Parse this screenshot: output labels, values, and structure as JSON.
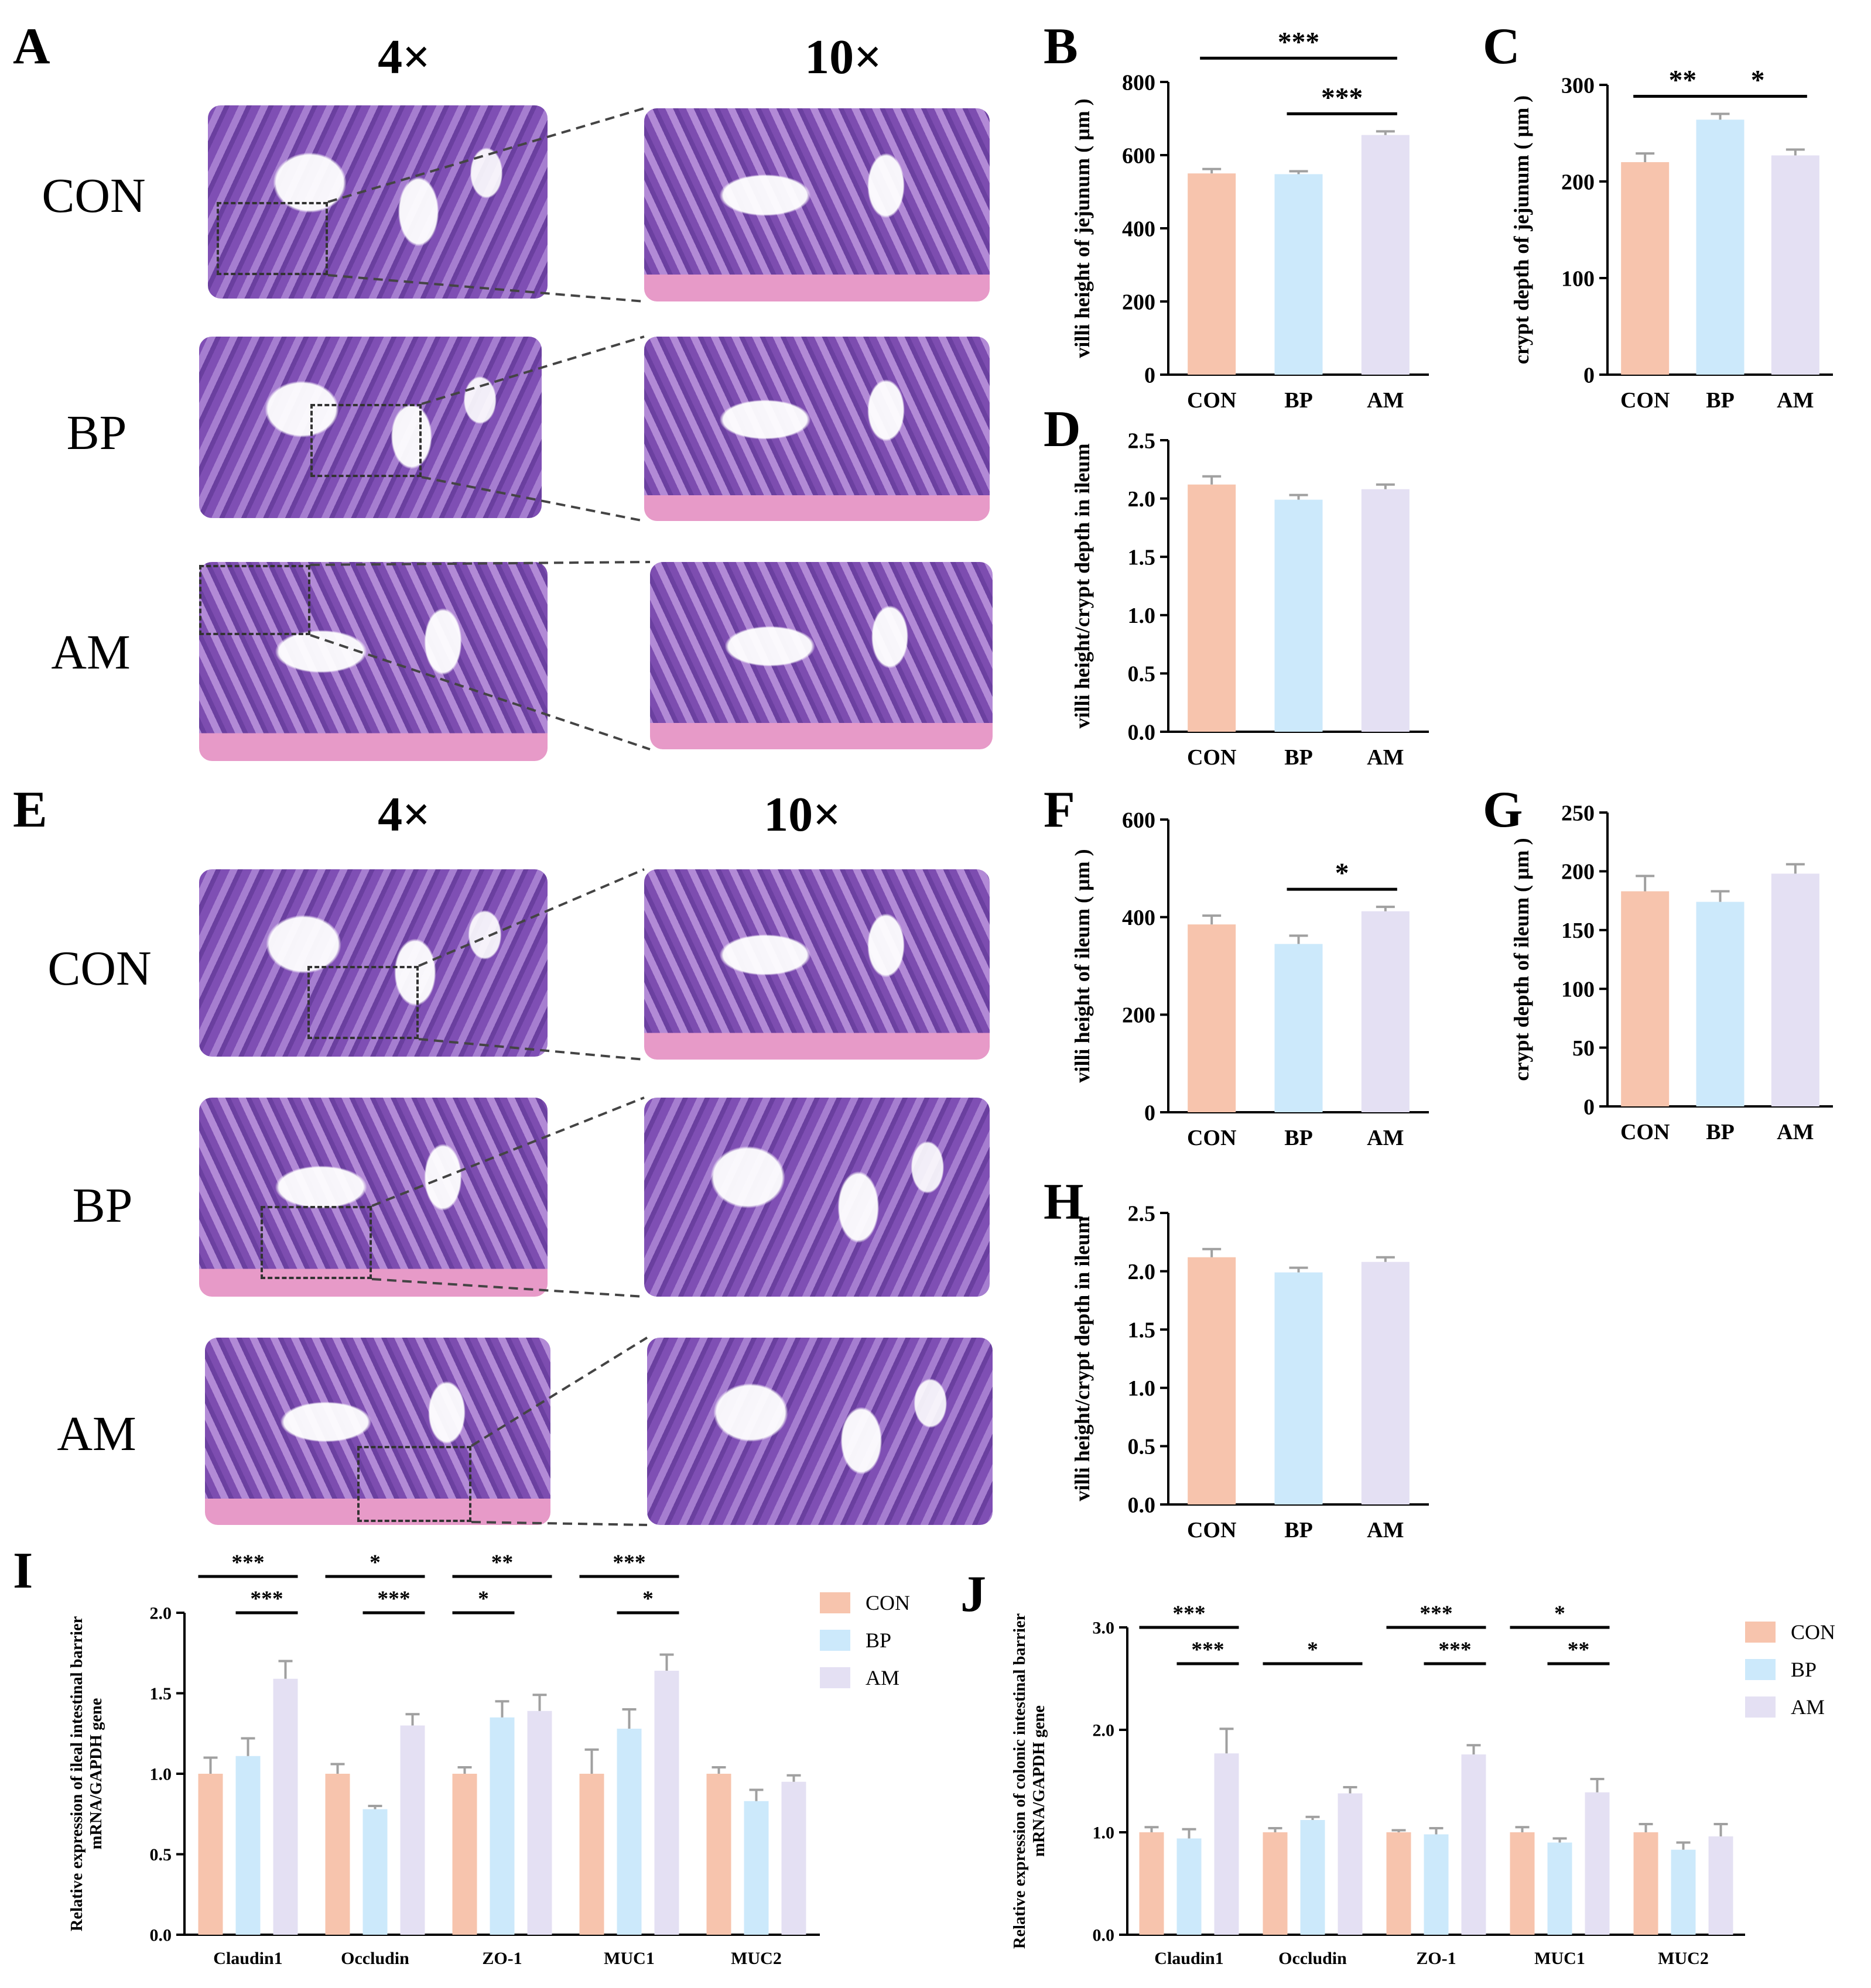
{
  "figure": {
    "panel_letters": [
      "A",
      "B",
      "C",
      "D",
      "E",
      "F",
      "G",
      "H",
      "I",
      "J"
    ],
    "magnification_top": [
      "4×",
      "10×"
    ],
    "magnification_bottom": [
      "4×",
      "10×"
    ],
    "groups_jejunum": [
      "CON",
      "BP",
      "AM"
    ],
    "groups_ileum": [
      "CON",
      "BP",
      "AM"
    ]
  },
  "colors": {
    "CON": "#f7c4ad",
    "BP": "#cce9fb",
    "AM": "#e4e0f3",
    "error": "#a0a0a0",
    "axis": "#000000"
  },
  "chart_data": [
    {
      "id": "B",
      "type": "bar",
      "categories": [
        "CON",
        "BP",
        "AM"
      ],
      "values": [
        550,
        548,
        655
      ],
      "errors": [
        12,
        8,
        10
      ],
      "ylabel": "villi height of jejunum ( μm )",
      "ylim": [
        0,
        800
      ],
      "yticks": [
        "0",
        "200",
        "400",
        "600",
        "800"
      ],
      "significance": [
        {
          "label": "***",
          "from": "CON",
          "to": "AM",
          "level": 1
        },
        {
          "label": "***",
          "from": "BP",
          "to": "AM",
          "level": 0
        }
      ]
    },
    {
      "id": "C",
      "type": "bar",
      "categories": [
        "CON",
        "BP",
        "AM"
      ],
      "values": [
        220,
        264,
        227
      ],
      "errors": [
        9,
        6,
        6
      ],
      "ylabel": "crypt depth of jejunum ( μm )",
      "ylim": [
        0,
        300
      ],
      "yticks": [
        "0",
        "100",
        "200",
        "300"
      ],
      "significance": [
        {
          "label": "**",
          "from": "CON",
          "to": "BP",
          "level": 0
        },
        {
          "label": "*",
          "from": "BP",
          "to": "AM",
          "level": 0
        }
      ]
    },
    {
      "id": "D",
      "type": "bar",
      "categories": [
        "CON",
        "BP",
        "AM"
      ],
      "values": [
        2.12,
        1.99,
        2.08
      ],
      "errors": [
        0.07,
        0.04,
        0.04
      ],
      "ylabel": "villi height/crypt depth  in ileum",
      "ylim": [
        0,
        2.5
      ],
      "yticks": [
        "0.0",
        "0.5",
        "1.0",
        "1.5",
        "2.0",
        "2.5"
      ],
      "significance": []
    },
    {
      "id": "F",
      "type": "bar",
      "categories": [
        "CON",
        "BP",
        "AM"
      ],
      "values": [
        385,
        345,
        412
      ],
      "errors": [
        18,
        17,
        9
      ],
      "ylabel": "villi height of ileum ( μm )",
      "ylim": [
        0,
        600
      ],
      "yticks": [
        "0",
        "200",
        "400",
        "600"
      ],
      "significance": [
        {
          "label": "*",
          "from": "BP",
          "to": "AM",
          "level": 0
        }
      ]
    },
    {
      "id": "G",
      "type": "bar",
      "categories": [
        "CON",
        "BP",
        "AM"
      ],
      "values": [
        183,
        174,
        198
      ],
      "errors": [
        13,
        9,
        8
      ],
      "ylabel": "crypt depth of ileum ( μm )",
      "ylim": [
        0,
        250
      ],
      "yticks": [
        "0",
        "50",
        "100",
        "150",
        "200",
        "250"
      ],
      "significance": []
    },
    {
      "id": "H",
      "type": "bar",
      "categories": [
        "CON",
        "BP",
        "AM"
      ],
      "values": [
        2.12,
        1.99,
        2.08
      ],
      "errors": [
        0.07,
        0.04,
        0.04
      ],
      "ylabel": "villi height/crypt depth  in ileum",
      "ylim": [
        0,
        2.5
      ],
      "yticks": [
        "0.0",
        "0.5",
        "1.0",
        "1.5",
        "2.0",
        "2.5"
      ],
      "significance": []
    },
    {
      "id": "I",
      "type": "grouped-bar",
      "categories": [
        "Claudin1",
        "Occludin",
        "ZO-1",
        "MUC1",
        "MUC2"
      ],
      "series": [
        {
          "name": "CON",
          "values": [
            1.0,
            1.0,
            1.0,
            1.0,
            1.0
          ],
          "errors": [
            0.1,
            0.06,
            0.04,
            0.15,
            0.04
          ]
        },
        {
          "name": "BP",
          "values": [
            1.11,
            0.78,
            1.35,
            1.28,
            0.83
          ],
          "errors": [
            0.11,
            0.02,
            0.1,
            0.12,
            0.07
          ]
        },
        {
          "name": "AM",
          "values": [
            1.59,
            1.3,
            1.39,
            1.64,
            0.95
          ],
          "errors": [
            0.11,
            0.07,
            0.1,
            0.1,
            0.04
          ]
        }
      ],
      "ylabel": "Relative expression of  ileal intestinal barrier\nmRNA/GAPDH gene",
      "ylim": [
        0,
        2.0
      ],
      "yticks": [
        "0.0",
        "0.5",
        "1.0",
        "1.5",
        "2.0"
      ],
      "legend": [
        "CON",
        "BP",
        "AM"
      ],
      "significance": [
        {
          "group": "Claudin1",
          "label": "***",
          "from": "CON",
          "to": "AM",
          "level": 1
        },
        {
          "group": "Claudin1",
          "label": "***",
          "from": "BP",
          "to": "AM",
          "level": 0
        },
        {
          "group": "Occludin",
          "label": "*",
          "from": "CON",
          "to": "AM",
          "level": 1
        },
        {
          "group": "Occludin",
          "label": "***",
          "from": "BP",
          "to": "AM",
          "level": 0
        },
        {
          "group": "ZO-1",
          "label": "**",
          "from": "CON",
          "to": "AM",
          "level": 1
        },
        {
          "group": "ZO-1",
          "label": "*",
          "from": "CON",
          "to": "BP",
          "level": 0
        },
        {
          "group": "MUC1",
          "label": "***",
          "from": "CON",
          "to": "AM",
          "level": 1
        },
        {
          "group": "MUC1",
          "label": "*",
          "from": "BP",
          "to": "AM",
          "level": 0
        }
      ]
    },
    {
      "id": "J",
      "type": "grouped-bar",
      "categories": [
        "Claudin1",
        "Occludin",
        "ZO-1",
        "MUC1",
        "MUC2"
      ],
      "series": [
        {
          "name": "CON",
          "values": [
            1.0,
            1.0,
            1.0,
            1.0,
            1.0
          ],
          "errors": [
            0.05,
            0.04,
            0.02,
            0.05,
            0.08
          ]
        },
        {
          "name": "BP",
          "values": [
            0.94,
            1.12,
            0.98,
            0.9,
            0.83
          ],
          "errors": [
            0.09,
            0.03,
            0.06,
            0.04,
            0.07
          ]
        },
        {
          "name": "AM",
          "values": [
            1.77,
            1.38,
            1.76,
            1.39,
            0.96
          ],
          "errors": [
            0.24,
            0.06,
            0.09,
            0.13,
            0.12
          ]
        }
      ],
      "ylabel": "Relative expression of colonic intestinal barrier\nmRNA/GAPDH gene",
      "ylim": [
        0,
        3.0
      ],
      "yticks": [
        "0.0",
        "1.0",
        "2.0",
        "3.0"
      ],
      "legend": [
        "CON",
        "BP",
        "AM"
      ],
      "significance": [
        {
          "group": "Claudin1",
          "label": "***",
          "from": "CON",
          "to": "AM",
          "level": 1
        },
        {
          "group": "Claudin1",
          "label": "***",
          "from": "BP",
          "to": "AM",
          "level": 0
        },
        {
          "group": "Occludin",
          "label": "*",
          "from": "CON",
          "to": "AM",
          "level": 0
        },
        {
          "group": "ZO-1",
          "label": "***",
          "from": "CON",
          "to": "AM",
          "level": 1
        },
        {
          "group": "ZO-1",
          "label": "***",
          "from": "BP",
          "to": "AM",
          "level": 0
        },
        {
          "group": "MUC1",
          "label": "*",
          "from": "CON",
          "to": "AM",
          "level": 1
        },
        {
          "group": "MUC1",
          "label": "**",
          "from": "BP",
          "to": "AM",
          "level": 0
        }
      ]
    }
  ]
}
